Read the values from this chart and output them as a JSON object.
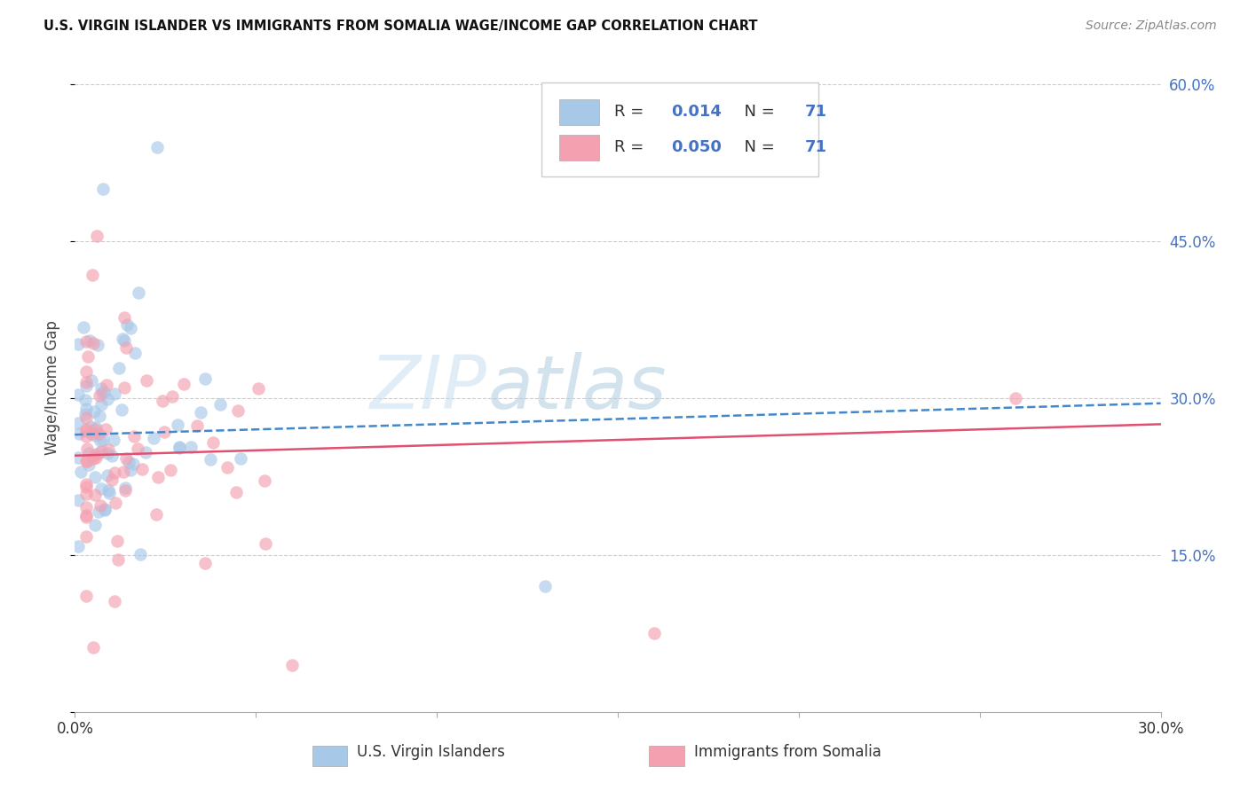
{
  "title": "U.S. VIRGIN ISLANDER VS IMMIGRANTS FROM SOMALIA WAGE/INCOME GAP CORRELATION CHART",
  "source": "Source: ZipAtlas.com",
  "ylabel": "Wage/Income Gap",
  "xmin": 0.0,
  "xmax": 0.3,
  "ymin": 0.0,
  "ymax": 0.62,
  "blue_R": 0.014,
  "blue_N": 71,
  "pink_R": 0.05,
  "pink_N": 71,
  "blue_color": "#a8c8e8",
  "pink_color": "#f4a0b0",
  "blue_line_color": "#4488cc",
  "pink_line_color": "#e05070",
  "legend_label_blue": "U.S. Virgin Islanders",
  "legend_label_pink": "Immigrants from Somalia",
  "blue_trend_start": 0.265,
  "blue_trend_end": 0.295,
  "pink_trend_start": 0.245,
  "pink_trend_end": 0.275,
  "watermark_zip_color": "#c8dff0",
  "watermark_atlas_color": "#b0c8e0",
  "right_tick_color": "#4472c4"
}
